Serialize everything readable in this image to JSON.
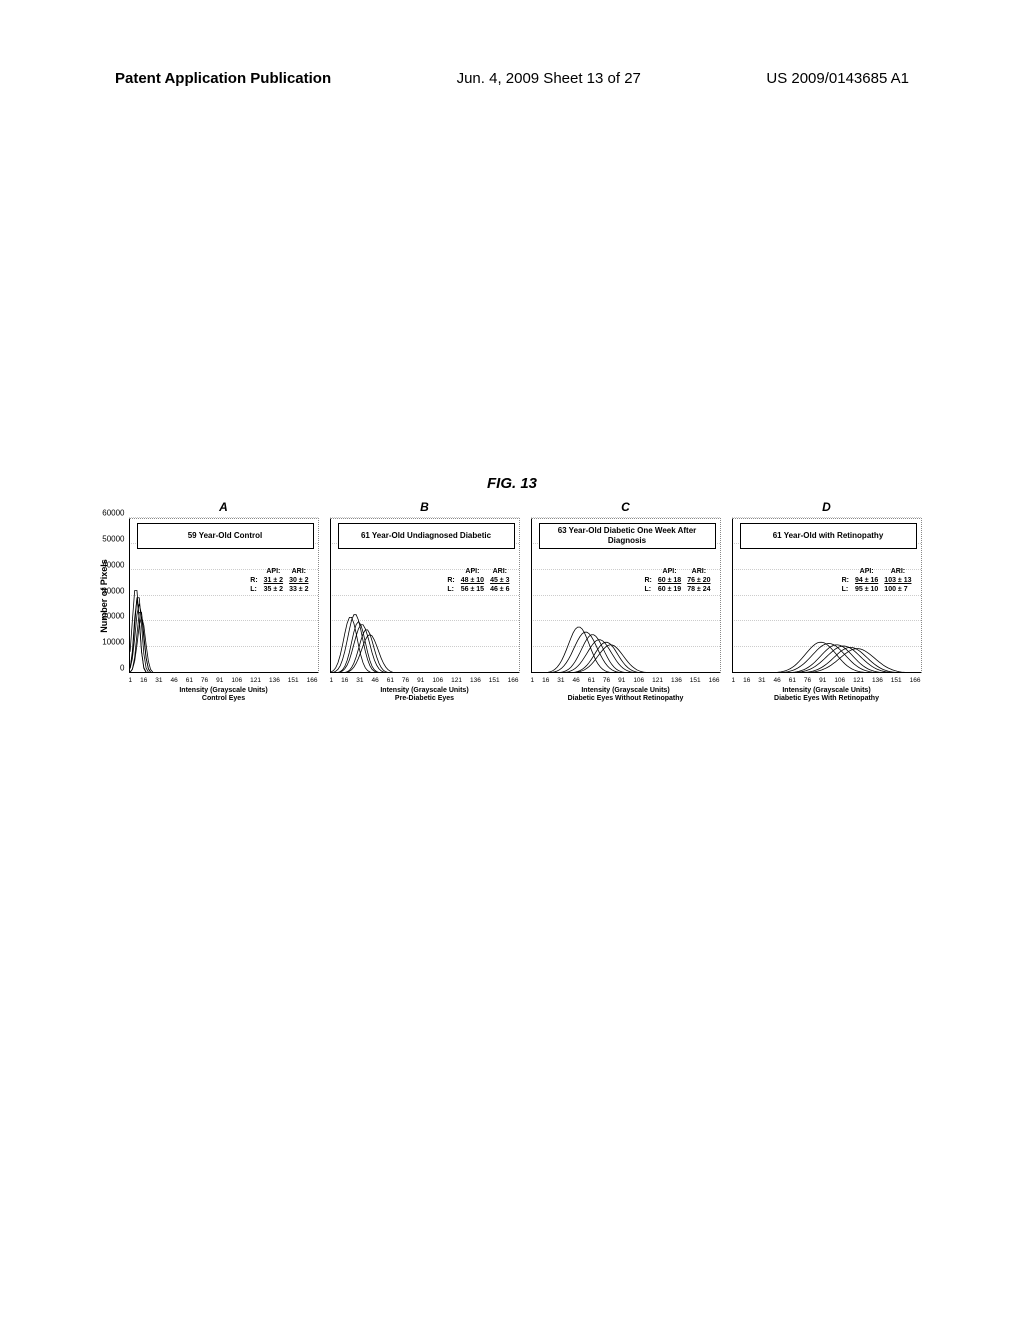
{
  "header": {
    "left": "Patent Application Publication",
    "center": "Jun. 4, 2009  Sheet 13 of 27",
    "right": "US 2009/0143685 A1"
  },
  "figure_label": "FIG. 13",
  "y_axis_label": "Number of Pixels",
  "y_ticks": [
    0,
    10000,
    20000,
    30000,
    40000,
    50000,
    60000
  ],
  "y_max": 60000,
  "x_ticks": [
    1,
    16,
    31,
    46,
    61,
    76,
    91,
    106,
    121,
    136,
    151,
    166
  ],
  "x_max": 166,
  "grid_color": "#cccccc",
  "line_color": "#000000",
  "text_color": "#000000",
  "panels": [
    {
      "letter": "A",
      "title": "59 Year-Old Control",
      "sub_label_1": "Intensity (Grayscale Units)",
      "sub_label_2": "Control Eyes",
      "stats": {
        "api_label": "API:",
        "ari_label": "ARI:",
        "r_label": "R:",
        "l_label": "L:",
        "r_api": "31 ± 2",
        "r_ari": "30 ± 2",
        "l_api": "35 ± 2",
        "l_ari": "33 ± 2"
      },
      "curves": [
        {
          "peak_x": 6,
          "peak_y": 34000,
          "width": 7
        },
        {
          "peak_x": 8,
          "peak_y": 31000,
          "width": 7
        },
        {
          "peak_x": 7,
          "peak_y": 29000,
          "width": 6
        },
        {
          "peak_x": 9,
          "peak_y": 27000,
          "width": 8
        },
        {
          "peak_x": 10,
          "peak_y": 25000,
          "width": 7
        },
        {
          "peak_x": 11,
          "peak_y": 22000,
          "width": 8
        }
      ]
    },
    {
      "letter": "B",
      "title": "61 Year-Old Undiagnosed Diabetic",
      "sub_label_1": "Intensity (Grayscale Units)",
      "sub_label_2": "Pre-Diabetic Eyes",
      "stats": {
        "api_label": "API:",
        "ari_label": "ARI:",
        "r_label": "R:",
        "l_label": "L:",
        "r_api": "48 ± 10",
        "r_ari": "45 ± 3",
        "l_api": "56 ± 15",
        "l_ari": "46 ± 6"
      },
      "curves": [
        {
          "peak_x": 18,
          "peak_y": 22000,
          "width": 14
        },
        {
          "peak_x": 22,
          "peak_y": 23000,
          "width": 15
        },
        {
          "peak_x": 25,
          "peak_y": 20000,
          "width": 14
        },
        {
          "peak_x": 28,
          "peak_y": 19000,
          "width": 16
        },
        {
          "peak_x": 32,
          "peak_y": 17000,
          "width": 15
        },
        {
          "peak_x": 35,
          "peak_y": 15000,
          "width": 17
        }
      ]
    },
    {
      "letter": "C",
      "title": "63 Year-Old Diabetic One Week After Diagnosis",
      "sub_label_1": "Intensity (Grayscale Units)",
      "sub_label_2": "Diabetic Eyes Without Retinopathy",
      "stats": {
        "api_label": "API:",
        "ari_label": "ARI:",
        "r_label": "R:",
        "l_label": "L:",
        "r_api": "60 ± 18",
        "r_ari": "76 ± 20",
        "l_api": "60 ± 19",
        "l_ari": "78 ± 24"
      },
      "curves": [
        {
          "peak_x": 42,
          "peak_y": 18000,
          "width": 22
        },
        {
          "peak_x": 48,
          "peak_y": 16000,
          "width": 24
        },
        {
          "peak_x": 54,
          "peak_y": 15000,
          "width": 23
        },
        {
          "peak_x": 60,
          "peak_y": 13000,
          "width": 25
        },
        {
          "peak_x": 66,
          "peak_y": 12000,
          "width": 24
        },
        {
          "peak_x": 70,
          "peak_y": 11000,
          "width": 26
        }
      ]
    },
    {
      "letter": "D",
      "title": "61 Year-Old with Retinopathy",
      "sub_label_1": "Intensity (Grayscale Units)",
      "sub_label_2": "Diabetic Eyes With Retinopathy",
      "stats": {
        "api_label": "API:",
        "ari_label": "ARI:",
        "r_label": "R:",
        "l_label": "L:",
        "r_api": "94 ± 16",
        "r_ari": "103 ± 13",
        "l_api": "95 ± 10",
        "l_ari": "100 ± 7"
      },
      "curves": [
        {
          "peak_x": 78,
          "peak_y": 12000,
          "width": 32
        },
        {
          "peak_x": 85,
          "peak_y": 11500,
          "width": 34
        },
        {
          "peak_x": 92,
          "peak_y": 11000,
          "width": 33
        },
        {
          "peak_x": 98,
          "peak_y": 10500,
          "width": 35
        },
        {
          "peak_x": 104,
          "peak_y": 10000,
          "width": 34
        },
        {
          "peak_x": 110,
          "peak_y": 9500,
          "width": 36
        }
      ]
    }
  ]
}
